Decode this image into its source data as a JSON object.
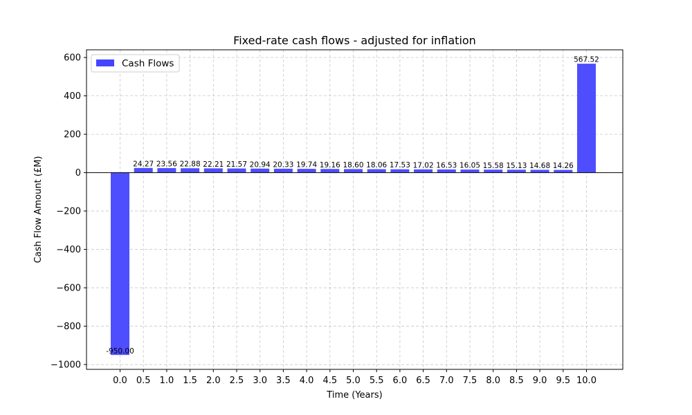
{
  "chart_data": {
    "type": "bar",
    "title": "Fixed-rate cash flows - adjusted for inflation",
    "xlabel": "Time (Years)",
    "ylabel": "Cash Flow Amount (£M)",
    "categories": [
      "0.0",
      "0.5",
      "1.0",
      "1.5",
      "2.0",
      "2.5",
      "3.0",
      "3.5",
      "4.0",
      "4.5",
      "5.0",
      "5.5",
      "6.0",
      "6.5",
      "7.0",
      "7.5",
      "8.0",
      "8.5",
      "9.0",
      "9.5",
      "10.0"
    ],
    "series": [
      {
        "name": "Cash Flows",
        "color": "#4444ff",
        "values": [
          -950.0,
          24.27,
          23.56,
          22.88,
          22.21,
          21.57,
          20.94,
          20.33,
          19.74,
          19.16,
          18.6,
          18.06,
          17.53,
          17.02,
          16.53,
          16.05,
          15.58,
          15.13,
          14.68,
          14.26,
          567.52
        ],
        "labels": [
          "-950.00",
          "24.27",
          "23.56",
          "22.88",
          "22.21",
          "21.57",
          "20.94",
          "20.33",
          "19.74",
          "19.16",
          "18.60",
          "18.06",
          "17.53",
          "17.02",
          "16.53",
          "16.05",
          "15.58",
          "15.13",
          "14.68",
          "14.26",
          "567.52"
        ]
      }
    ],
    "ylim": [
      -1025,
      640
    ],
    "yticks": [
      600,
      400,
      200,
      0,
      -200,
      -400,
      -600,
      -800,
      -1000
    ],
    "ytick_labels": [
      "600",
      "400",
      "200",
      "0",
      "−200",
      "−400",
      "−600",
      "−800",
      "−1000"
    ],
    "grid": true,
    "legend_position": "top-left"
  }
}
